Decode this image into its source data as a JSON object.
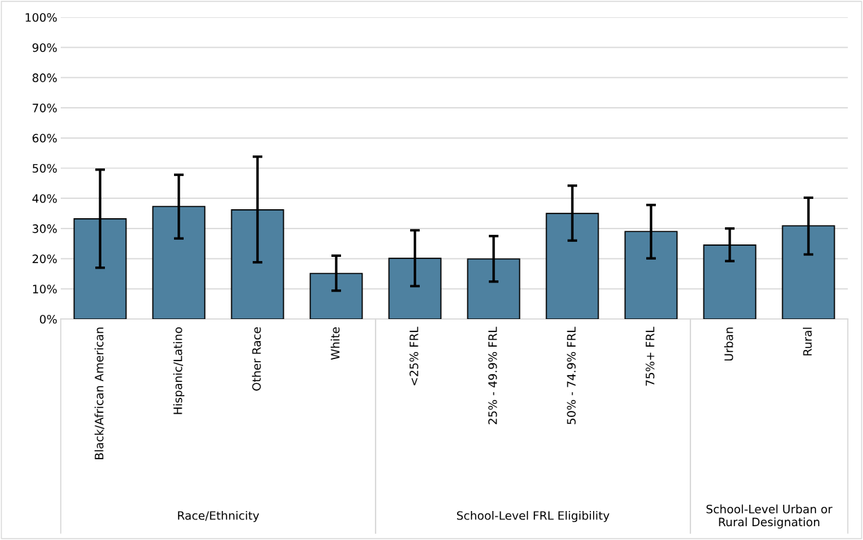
{
  "chart_data": {
    "type": "bar",
    "categories": [
      "Black/African American",
      "Hispanic/Latino",
      "Other Race",
      "White",
      "<25% FRL",
      "25% - 49.9% FRL",
      "50% - 74.9% FRL",
      "75%+ FRL",
      "Urban",
      "Rural"
    ],
    "values": [
      33.2,
      37.3,
      36.2,
      15.1,
      20.1,
      19.9,
      35.0,
      29.0,
      24.5,
      30.9
    ],
    "errors": [
      [
        17.0,
        49.5
      ],
      [
        26.7,
        47.8
      ],
      [
        18.8,
        53.8
      ],
      [
        9.4,
        21.0
      ],
      [
        10.9,
        29.4
      ],
      [
        12.4,
        27.5
      ],
      [
        26.0,
        44.2
      ],
      [
        20.1,
        37.8
      ],
      [
        19.2,
        30.0
      ],
      [
        21.4,
        40.2
      ]
    ],
    "color": "#4e81a0",
    "ylim": [
      0,
      100
    ],
    "yticks": [
      {
        "value": 0,
        "label": "0%"
      },
      {
        "value": 10,
        "label": "10%"
      },
      {
        "value": 20,
        "label": "20%"
      },
      {
        "value": 30,
        "label": "30%"
      },
      {
        "value": 40,
        "label": "40%"
      },
      {
        "value": 50,
        "label": "50%"
      },
      {
        "value": 60,
        "label": "60%"
      },
      {
        "value": 70,
        "label": "70%"
      },
      {
        "value": 80,
        "label": "80%"
      },
      {
        "value": 90,
        "label": "90%"
      },
      {
        "value": 100,
        "label": "100%"
      }
    ],
    "grid": "y",
    "annotations": [
      "Race/Ethnicity",
      "School-Level FRL Eligibility",
      "School-Level Urban or\nRural Designation"
    ]
  }
}
